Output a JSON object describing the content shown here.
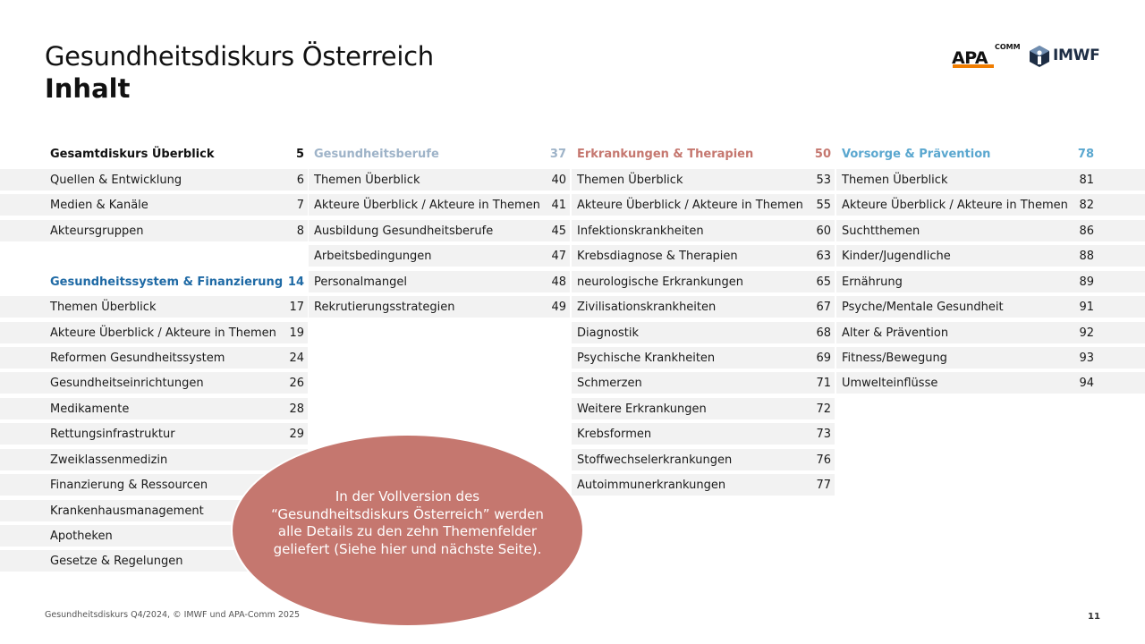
{
  "header": {
    "title": "Gesundheitsdiskurs Österreich",
    "subtitle": "Inhalt",
    "logo_apa": "APA",
    "logo_apa_sup": "COMM",
    "logo_imwf": "IMWF"
  },
  "colors": {
    "gesundheitssystem": "#1f6aa5",
    "gesundheitsberufe": "#9eb3c8",
    "erkrankungen": "#c5776f",
    "vorsorge": "#5aa7cf",
    "row_bg": "#f2f2f2",
    "ellipse": "#c5776f"
  },
  "col1": {
    "sections": [
      {
        "header": {
          "label": "Gesamtdiskurs Überblick",
          "page": "5"
        },
        "items": [
          {
            "label": "Quellen & Entwicklung",
            "page": "6"
          },
          {
            "label": "Medien & Kanäle",
            "page": "7"
          },
          {
            "label": "Akteursgruppen",
            "page": "8"
          }
        ]
      },
      {
        "header": {
          "label": "Gesundheitssystem & Finanzierung",
          "page": "14"
        },
        "items": [
          {
            "label": "Themen Überblick",
            "page": "17"
          },
          {
            "label": "Akteure Überblick / Akteure in Themen",
            "page": "19"
          },
          {
            "label": "Reformen Gesundheitssystem",
            "page": "24"
          },
          {
            "label": "Gesundheitseinrichtungen",
            "page": "26"
          },
          {
            "label": "Medikamente",
            "page": "28"
          },
          {
            "label": "Rettungsinfrastruktur",
            "page": "29"
          },
          {
            "label": "Zweiklassenmedizin",
            "page": ""
          },
          {
            "label": "Finanzierung & Ressourcen",
            "page": ""
          },
          {
            "label": "Krankenhausmanagement",
            "page": ""
          },
          {
            "label": "Apotheken",
            "page": ""
          },
          {
            "label": "Gesetze & Regelungen",
            "page": ""
          }
        ]
      }
    ]
  },
  "col2": {
    "header": {
      "label": "Gesundheitsberufe",
      "page": "37"
    },
    "items": [
      {
        "label": "Themen Überblick",
        "page": "40"
      },
      {
        "label": "Akteure Überblick / Akteure in Themen",
        "page": "41"
      },
      {
        "label": "Ausbildung Gesundheitsberufe",
        "page": "45"
      },
      {
        "label": "Arbeitsbedingungen",
        "page": "47"
      },
      {
        "label": "Personalmangel",
        "page": "48"
      },
      {
        "label": "Rekrutierungsstrategien",
        "page": "49"
      }
    ]
  },
  "col3": {
    "header": {
      "label": "Erkrankungen & Therapien",
      "page": "50"
    },
    "items": [
      {
        "label": "Themen Überblick",
        "page": "53"
      },
      {
        "label": "Akteure Überblick / Akteure in Themen",
        "page": "55"
      },
      {
        "label": "Infektionskrankheiten",
        "page": "60"
      },
      {
        "label": "Krebsdiagnose & Therapien",
        "page": "63"
      },
      {
        "label": "neurologische Erkrankungen",
        "page": "65"
      },
      {
        "label": "Zivilisationskrankheiten",
        "page": "67"
      },
      {
        "label": "Diagnostik",
        "page": "68"
      },
      {
        "label": "Psychische Krankheiten",
        "page": "69"
      },
      {
        "label": "Schmerzen",
        "page": "71"
      },
      {
        "label": "Weitere Erkrankungen",
        "page": "72"
      },
      {
        "label": "Krebsformen",
        "page": "73"
      },
      {
        "label": "Stoffwechselerkrankungen",
        "page": "76"
      },
      {
        "label": "Autoimmunerkrankungen",
        "page": "77"
      }
    ]
  },
  "col4": {
    "header": {
      "label": "Vorsorge & Prävention",
      "page": "78"
    },
    "items": [
      {
        "label": "Themen Überblick",
        "page": "81"
      },
      {
        "label": "Akteure Überblick / Akteure in Themen",
        "page": "82"
      },
      {
        "label": "Suchtthemen",
        "page": "86"
      },
      {
        "label": "Kinder/Jugendliche",
        "page": "88"
      },
      {
        "label": "Ernährung",
        "page": "89"
      },
      {
        "label": "Psyche/Mentale Gesundheit",
        "page": "91"
      },
      {
        "label": "Alter & Prävention",
        "page": "92"
      },
      {
        "label": "Fitness/Bewegung",
        "page": "93"
      },
      {
        "label": "Umwelteinflüsse",
        "page": "94"
      }
    ]
  },
  "callout": {
    "text": "In der Vollversion des “Gesundheitsdiskurs Österreich” werden alle Details zu den zehn Themenfelder geliefert (Siehe hier und nächste Seite)."
  },
  "footer": {
    "source": "Gesundheitsdiskurs Q4/2024, © IMWF und APA-Comm 2025",
    "page_number": "11"
  }
}
